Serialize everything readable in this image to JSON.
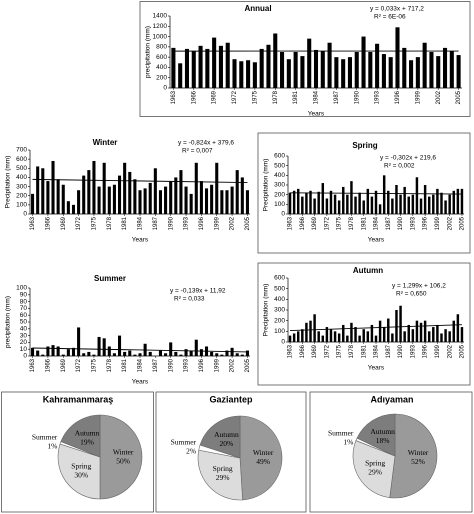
{
  "chart_data": [
    {
      "type": "bar",
      "title": "Annual",
      "x_label": "Years",
      "y_label": "precipitation (mm)",
      "color": "#000000",
      "categories": [
        "1963",
        null,
        null,
        "1966",
        null,
        null,
        "1969",
        null,
        null,
        "1972",
        null,
        null,
        "1975",
        null,
        null,
        "1978",
        null,
        null,
        "1981",
        null,
        null,
        "1984",
        null,
        null,
        "1987",
        null,
        null,
        "1990",
        null,
        null,
        "1993",
        null,
        null,
        "1996",
        null,
        null,
        "1999",
        null,
        null,
        "2002",
        null,
        null,
        "2005"
      ],
      "values": [
        780,
        480,
        760,
        720,
        820,
        760,
        980,
        820,
        880,
        560,
        520,
        540,
        500,
        760,
        840,
        1060,
        700,
        560,
        700,
        620,
        960,
        740,
        720,
        880,
        600,
        560,
        600,
        700,
        1000,
        700,
        860,
        660,
        600,
        1180,
        780,
        540,
        600,
        880,
        700,
        620,
        780,
        720,
        640
      ],
      "ylim": [
        0,
        1400
      ],
      "yticks": [
        0,
        200,
        400,
        600,
        800,
        1000,
        1200,
        1400
      ],
      "trend": {
        "equation": "y = 0,033x + 717,2",
        "r2": "R² = 6E-06",
        "values": [
          717.2,
          718.6
        ]
      }
    },
    {
      "type": "bar",
      "title": "Winter",
      "x_label": "Years",
      "y_label": "Precipitation (mm)",
      "color": "#000000",
      "categories": [
        "1963",
        null,
        null,
        "1966",
        null,
        null,
        "1969",
        null,
        null,
        "1972",
        null,
        null,
        "1975",
        null,
        null,
        "1978",
        null,
        null,
        "1981",
        null,
        null,
        "1984",
        null,
        null,
        "1987",
        null,
        null,
        "1990",
        null,
        null,
        "1993",
        null,
        null,
        "1996",
        null,
        null,
        "1999",
        null,
        null,
        "2002",
        null,
        null,
        "2005"
      ],
      "values": [
        220,
        520,
        500,
        360,
        580,
        380,
        320,
        140,
        100,
        260,
        420,
        480,
        580,
        300,
        560,
        300,
        320,
        420,
        560,
        460,
        380,
        260,
        280,
        340,
        500,
        260,
        300,
        360,
        400,
        480,
        300,
        220,
        560,
        360,
        280,
        320,
        560,
        260,
        260,
        300,
        480,
        400,
        260
      ],
      "ylim": [
        0,
        700
      ],
      "yticks": [
        0,
        100,
        200,
        300,
        400,
        500,
        600,
        700
      ],
      "trend": {
        "equation": "y = -0,824x + 379,6",
        "r2": "R² = 0,007",
        "values": [
          378.8,
          344.2
        ]
      }
    },
    {
      "type": "bar",
      "title": "Spring",
      "x_label": "Years",
      "y_label": "Precipitation (mm)",
      "color": "#000000",
      "categories": [
        "1963",
        null,
        null,
        "1966",
        null,
        null,
        "1969",
        null,
        null,
        "1972",
        null,
        null,
        "1975",
        null,
        null,
        "1978",
        null,
        null,
        "1981",
        null,
        null,
        "1984",
        null,
        null,
        "1987",
        null,
        null,
        "1990",
        null,
        null,
        "1993",
        null,
        null,
        "1996",
        null,
        null,
        "1999",
        null,
        null,
        "2002",
        null,
        null,
        "2005"
      ],
      "values": [
        220,
        240,
        260,
        180,
        220,
        240,
        160,
        230,
        320,
        160,
        240,
        200,
        140,
        280,
        200,
        340,
        180,
        220,
        140,
        260,
        180,
        240,
        100,
        400,
        240,
        160,
        300,
        200,
        280,
        180,
        200,
        380,
        160,
        300,
        180,
        200,
        260,
        220,
        140,
        200,
        240,
        260,
        260
      ],
      "ylim": [
        0,
        600
      ],
      "yticks": [
        0,
        100,
        200,
        300,
        400,
        500,
        600
      ],
      "trend": {
        "equation": "y = -0,302x + 219,6",
        "r2": "R² = 0,002",
        "values": [
          219.3,
          206.6
        ]
      }
    },
    {
      "type": "bar",
      "title": "Summer",
      "x_label": "Years",
      "y_label": "precipitation (mm)",
      "color": "#000000",
      "categories": [
        "1963",
        null,
        null,
        "1966",
        null,
        null,
        "1969",
        null,
        null,
        "1972",
        null,
        null,
        "1975",
        null,
        null,
        "1978",
        null,
        null,
        "1981",
        null,
        null,
        "1984",
        null,
        null,
        "1987",
        null,
        null,
        "1990",
        null,
        null,
        "1993",
        null,
        null,
        "1996",
        null,
        null,
        "1999",
        null,
        null,
        "2002",
        null,
        null,
        "2005"
      ],
      "values": [
        12,
        8,
        2,
        14,
        16,
        14,
        2,
        10,
        12,
        42,
        4,
        6,
        2,
        28,
        26,
        14,
        4,
        30,
        6,
        8,
        2,
        4,
        18,
        6,
        0,
        8,
        4,
        20,
        6,
        2,
        10,
        8,
        24,
        10,
        14,
        6,
        4,
        2,
        8,
        12,
        4,
        2,
        8
      ],
      "ylim": [
        0,
        100
      ],
      "yticks": [
        0,
        10,
        20,
        30,
        40,
        50,
        60,
        70,
        80,
        90,
        100
      ],
      "trend": {
        "equation": "y = -0,139x + 11,92",
        "r2": "R² = 0,033",
        "values": [
          11.78,
          5.94
        ]
      }
    },
    {
      "type": "bar",
      "title": "Autumn",
      "x_label": "Years",
      "y_label": "Precipitation (mm)",
      "color": "#000000",
      "categories": [
        "1963",
        null,
        null,
        "1966",
        null,
        null,
        "1969",
        null,
        null,
        "1972",
        null,
        null,
        "1975",
        null,
        null,
        "1978",
        null,
        null,
        "1981",
        null,
        null,
        "1984",
        null,
        null,
        "1987",
        null,
        null,
        "1990",
        null,
        null,
        "1993",
        null,
        null,
        "1996",
        null,
        null,
        "1999",
        null,
        null,
        "2002",
        null,
        null,
        "2005"
      ],
      "values": [
        60,
        80,
        100,
        120,
        180,
        200,
        260,
        100,
        60,
        140,
        120,
        100,
        80,
        160,
        60,
        180,
        140,
        60,
        120,
        100,
        160,
        60,
        200,
        140,
        220,
        80,
        300,
        340,
        100,
        160,
        120,
        200,
        180,
        200,
        100,
        140,
        160,
        80,
        120,
        100,
        200,
        260,
        140
      ],
      "ylim": [
        0,
        600
      ],
      "yticks": [
        0,
        100,
        200,
        300,
        400,
        500,
        600
      ],
      "trend": {
        "equation": "y = 1,299x + 106,2",
        "r2": "R² = 0,650",
        "values": [
          107.5,
          162.1
        ]
      }
    },
    {
      "type": "pie",
      "title": "Kahramanmaraş",
      "categories": [
        "Winter",
        "Spring",
        "Summer",
        "Autumn"
      ],
      "values": [
        50,
        30,
        1,
        19
      ],
      "value_labels": [
        "50%",
        "30%",
        "1%",
        "19%"
      ],
      "colors": [
        "#9a9a9a",
        "#dcdcdc",
        "#ffffff",
        "#7d7d7d"
      ]
    },
    {
      "type": "pie",
      "title": "Gaziantep",
      "categories": [
        "Winter",
        "Spring",
        "Summer",
        "Autumn"
      ],
      "values": [
        49,
        29,
        2,
        20
      ],
      "value_labels": [
        "49%",
        "29%",
        "2%",
        "20%"
      ],
      "colors": [
        "#9a9a9a",
        "#dcdcdc",
        "#ffffff",
        "#7d7d7d"
      ]
    },
    {
      "type": "pie",
      "title": "Adıyaman",
      "categories": [
        "Winter",
        "Spring",
        "Summer",
        "Autumn"
      ],
      "values": [
        52,
        29,
        1,
        18
      ],
      "value_labels": [
        "52%",
        "29%",
        "1%",
        "18%"
      ],
      "colors": [
        "#9a9a9a",
        "#dcdcdc",
        "#ffffff",
        "#7d7d7d"
      ]
    }
  ]
}
